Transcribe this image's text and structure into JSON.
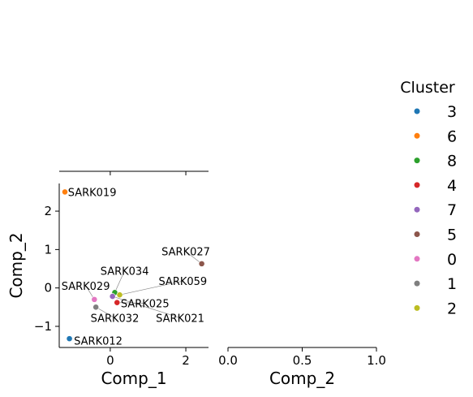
{
  "chart_data": {
    "type": "scatter",
    "xlabel": "Comp_1",
    "ylabel": "Comp_2",
    "xlim": [
      -1.35,
      2.6
    ],
    "ylim": [
      -1.55,
      2.72
    ],
    "x_ticks": [
      0,
      2
    ],
    "y_ticks": [
      -1,
      0,
      1,
      2
    ],
    "grid": false,
    "points": [
      {
        "label": "SARK019",
        "cluster": "6",
        "x": -1.2,
        "y": 2.5
      },
      {
        "label": "SARK027",
        "cluster": "5",
        "x": 2.42,
        "y": 0.63
      },
      {
        "label": "SARK034",
        "cluster": "8",
        "x": 0.12,
        "y": -0.12
      },
      {
        "label": "SARK059",
        "cluster": "2",
        "x": 0.25,
        "y": -0.18
      },
      {
        "label": "SARK029",
        "cluster": "0",
        "x": -0.42,
        "y": -0.3
      },
      {
        "label": "SARK025",
        "cluster": "4",
        "x": 0.18,
        "y": -0.38
      },
      {
        "label": "SARK032",
        "cluster": "1",
        "x": -0.38,
        "y": -0.5
      },
      {
        "label": "SARK021",
        "cluster": "7",
        "x": 0.06,
        "y": -0.22
      },
      {
        "label": "SARK012",
        "cluster": "3",
        "x": -1.08,
        "y": -1.32
      }
    ],
    "annotations": [
      {
        "point": "SARK019",
        "text_x": -1.12,
        "text_y": 2.5
      },
      {
        "point": "SARK027",
        "text_x": 2.0,
        "text_y": 0.95
      },
      {
        "point": "SARK034",
        "text_x": 0.38,
        "text_y": 0.45
      },
      {
        "point": "SARK059",
        "text_x": 1.92,
        "text_y": 0.18
      },
      {
        "point": "SARK029",
        "text_x": -0.65,
        "text_y": 0.06
      },
      {
        "point": "SARK025",
        "text_x": 0.92,
        "text_y": -0.4
      },
      {
        "point": "SARK032",
        "text_x": 0.12,
        "text_y": -0.78
      },
      {
        "point": "SARK021",
        "text_x": 1.85,
        "text_y": -0.78
      },
      {
        "point": "SARK012",
        "text_x": -0.96,
        "text_y": -1.37
      }
    ],
    "top_panel": {
      "xlim": [
        -1.35,
        2.6
      ],
      "x_ticks": [
        0,
        2
      ]
    },
    "right_panel": {
      "xlabel": "Comp_2",
      "xlim": [
        0,
        1
      ],
      "x_ticks": [
        "0.0",
        "0.5",
        "1.0"
      ]
    },
    "legend": {
      "title": "Cluster",
      "placement": "right",
      "entries": [
        {
          "label": "3",
          "color": "#1f77b4"
        },
        {
          "label": "6",
          "color": "#ff7f0e"
        },
        {
          "label": "8",
          "color": "#2ca02c"
        },
        {
          "label": "4",
          "color": "#d62728"
        },
        {
          "label": "7",
          "color": "#9467bd"
        },
        {
          "label": "5",
          "color": "#8c564b"
        },
        {
          "label": "0",
          "color": "#e377c2"
        },
        {
          "label": "1",
          "color": "#7f7f7f"
        },
        {
          "label": "2",
          "color": "#bcbd22"
        }
      ]
    }
  }
}
